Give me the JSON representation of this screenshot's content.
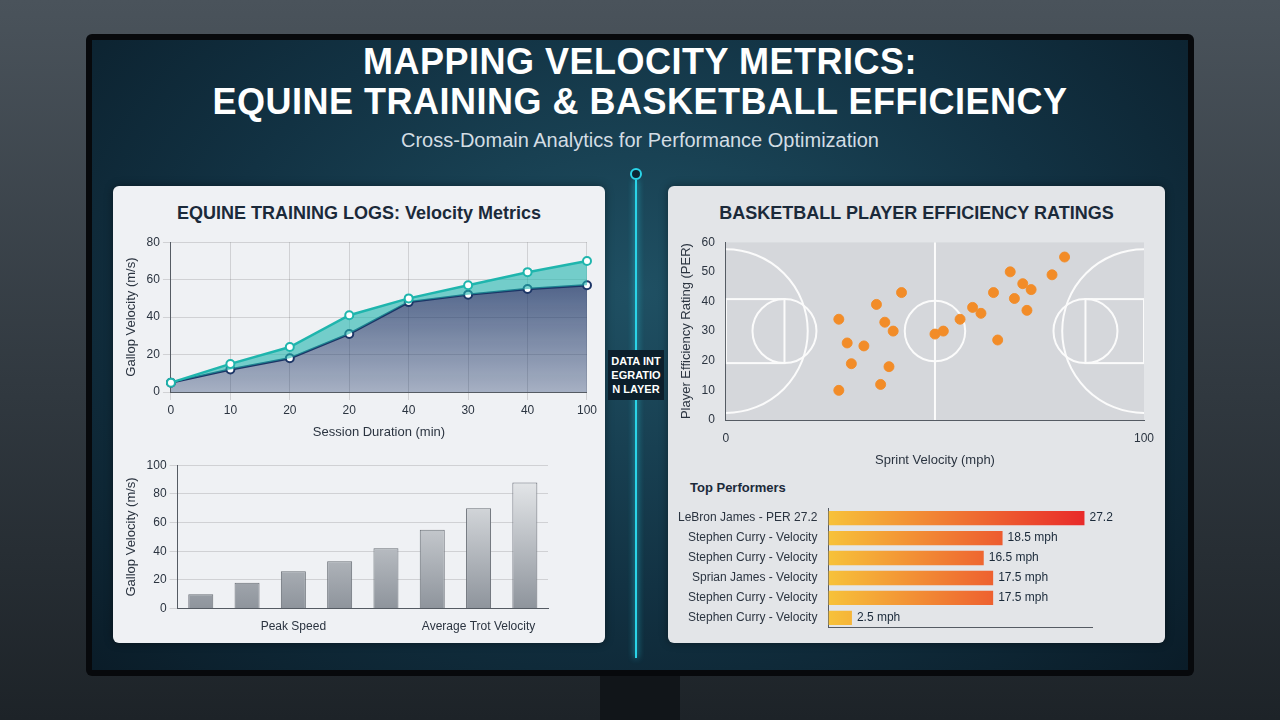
{
  "header": {
    "title_lines": [
      "MAPPING VELOCITY METRICS:",
      "EQUINE TRAINING & BASKETBALL EFFICIENCY"
    ],
    "subtitle": "Cross-Domain Analytics for Performance Optimization",
    "center_label": "DATA INTEGRATION LAYER"
  },
  "chart_data": [
    {
      "type": "line",
      "title": "EQUINE TRAINING LOGS: Velocity Metrics",
      "x_label": "Session Duration (min)",
      "y_label": "Gallop Velocity (m/s)",
      "categories": [
        "0",
        "10",
        "20",
        "20",
        "40",
        "30",
        "40",
        "100"
      ],
      "series": [
        {
          "color": "#1fb5ad",
          "values": [
            5,
            15,
            24,
            41,
            50,
            57,
            64,
            70
          ]
        },
        {
          "color": "#1c3566",
          "values": [
            5,
            12,
            18,
            31,
            48,
            52,
            55,
            57
          ]
        }
      ],
      "ylim": [
        0,
        80
      ],
      "yticks": [
        0,
        20,
        40,
        60,
        80
      ],
      "grid": true,
      "marker": "circle"
    },
    {
      "type": "bar",
      "y_label": "Gallop Velocity (m/s)",
      "categories": [
        null,
        null,
        "Peak Speed",
        null,
        null,
        null,
        "Average Trot Velocity",
        null
      ],
      "values": [
        10,
        18,
        26,
        33,
        42,
        55,
        70,
        88
      ],
      "color": "#8e949c",
      "ylim": [
        0,
        100
      ],
      "yticks": [
        0,
        20,
        40,
        60,
        80,
        100
      ],
      "grid": true
    },
    {
      "type": "scatter",
      "title": "BASKETBALL PLAYER EFFICIENCY RATINGS",
      "x_label": "Sprint Velocity (mph)",
      "y_label": "Player Efficiency Rating (PER)",
      "x": [
        27,
        36,
        42,
        29,
        33,
        38,
        40,
        30,
        39,
        37,
        27,
        50,
        52,
        56,
        59,
        61,
        64,
        68,
        71,
        73,
        69,
        72,
        78,
        81,
        65
      ],
      "values": [
        34,
        39,
        43,
        26,
        25,
        33,
        30,
        19,
        18,
        12,
        10,
        29,
        30,
        34,
        38,
        36,
        43,
        50,
        46,
        44,
        41,
        37,
        49,
        55,
        27
      ],
      "color": "#f28c28",
      "marker": "circle",
      "xlim": [
        0,
        100
      ],
      "xticks": [
        0,
        100
      ],
      "ylim": [
        0,
        60
      ],
      "yticks": [
        0,
        10,
        20,
        30,
        40,
        50,
        60
      ],
      "grid": false
    },
    {
      "type": "bar",
      "orientation": "horizontal",
      "title": "Top Performers",
      "categories": [
        "LeBron James - PER 27.2",
        "Stephen Curry - Velocity",
        "Stephen Curry - Velocity",
        "Sprian James - Velocity",
        "Stephen Curry - Velocity",
        "Stephen Curry - Velocity"
      ],
      "values": [
        27.2,
        18.5,
        16.5,
        17.5,
        17.5,
        2.5
      ],
      "value_labels": [
        "27.2",
        "18.5 mph",
        "16.5 mph",
        "17.5 mph",
        "17.5 mph",
        "2.5 mph"
      ],
      "color": "#e8262a",
      "data_labels": true,
      "tick_labels": "y",
      "xlim": [
        0,
        28
      ],
      "grid": false
    }
  ]
}
